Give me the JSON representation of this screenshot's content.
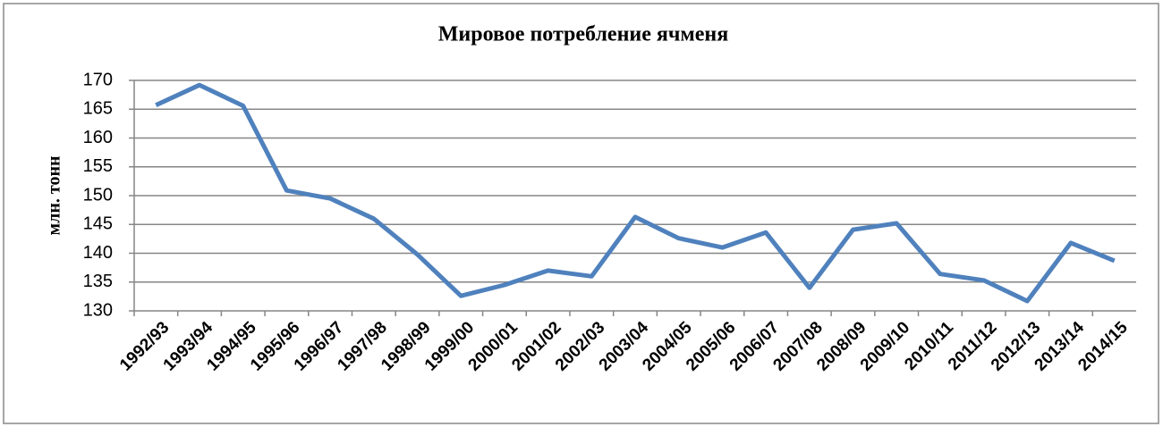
{
  "chart_data": {
    "type": "line",
    "title": "Мировое потребление ячменя",
    "y_label": "млн. тонн",
    "categories": [
      "1992/93",
      "1993/94",
      "1994/95",
      "1995/96",
      "1996/97",
      "1997/98",
      "1998/99",
      "1999/00",
      "2000/01",
      "2001/02",
      "2002/03",
      "2003/04",
      "2004/05",
      "2005/06",
      "2006/07",
      "2007/08",
      "2008/09",
      "2009/10",
      "2010/11",
      "2011/12",
      "2012/13",
      "2013/14",
      "2014/15"
    ],
    "series": [
      {
        "name": "Мировое потребление ячменя",
        "color": "#4f81bd",
        "values": [
          165.7,
          169.2,
          165.6,
          150.9,
          149.5,
          146,
          139.8,
          132.6,
          134.5,
          137,
          136,
          146.3,
          142.6,
          141,
          143.6,
          134,
          144.1,
          145.2,
          136.4,
          135.3,
          131.7,
          141.8,
          138.7
        ]
      }
    ],
    "ylim": [
      130,
      170
    ],
    "yticks": [
      130,
      135,
      140,
      145,
      150,
      155,
      160,
      165,
      170
    ],
    "grid": true
  }
}
